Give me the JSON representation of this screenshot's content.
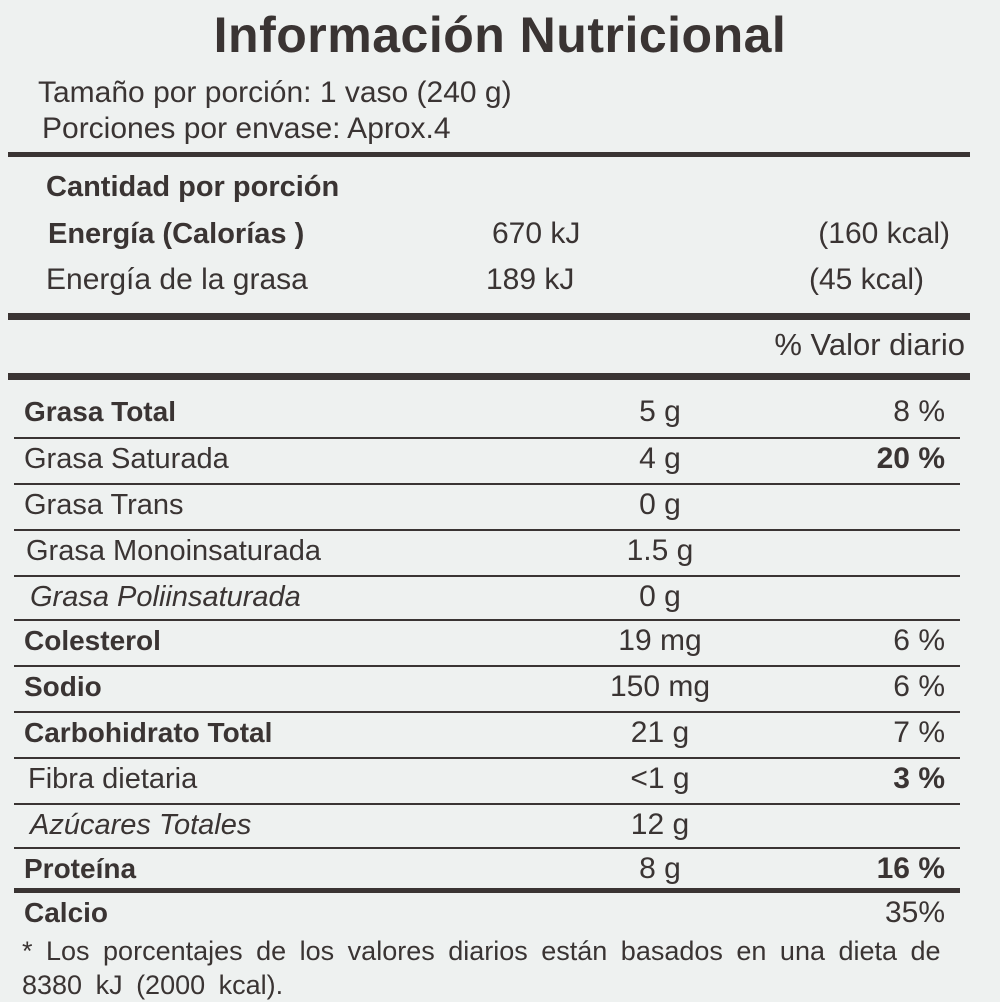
{
  "title": "Información Nutricional",
  "serving_size": "Tamaño por porción: 1 vaso (240 g)",
  "servings_per_container": "Porciones por envase: Aprox.4",
  "amount_per_serving": "Cantidad por porción",
  "energy": {
    "label": "Energía  (Calorías )",
    "kj": "670 kJ",
    "kcal": "(160 kcal)"
  },
  "energy_fat": {
    "label": "Energía de la grasa",
    "kj": "189 kJ",
    "kcal": "(45 kcal)"
  },
  "daily_value_header": "% Valor diario",
  "nutrients": [
    {
      "name": "Grasa Total",
      "amount": "5 g",
      "dv": "8 %",
      "bold": true
    },
    {
      "name": "Grasa Saturada",
      "amount": "4 g",
      "dv": "20 %",
      "bold": false
    },
    {
      "name": "Grasa Trans",
      "amount": "0 g",
      "dv": "",
      "bold": false
    },
    {
      "name": "Grasa Monoinsaturada",
      "amount": "1.5 g",
      "dv": "",
      "bold": false
    },
    {
      "name": "Grasa Poliinsaturada",
      "amount": "0 g",
      "dv": "",
      "bold": false
    },
    {
      "name": "Colesterol",
      "amount": "19 mg",
      "dv": "6 %",
      "bold": true
    },
    {
      "name": "Sodio",
      "amount": "150 mg",
      "dv": "6 %",
      "bold": true
    },
    {
      "name": "Carbohidrato Total",
      "amount": "21 g",
      "dv": "7 %",
      "bold": true
    },
    {
      "name": "Fibra dietaria",
      "amount": "<1 g",
      "dv": "3 %",
      "bold": false
    },
    {
      "name": "Azúcares Totales",
      "amount": "12 g",
      "dv": "",
      "bold": false
    },
    {
      "name": "Proteína",
      "amount": "8 g",
      "dv": "16 %",
      "bold": true
    },
    {
      "name": "Calcio",
      "amount": "",
      "dv": "35%",
      "bold": true
    }
  ],
  "footnote": "* Los porcentajes de los valores diarios están basados en una dieta de 8380 kJ (2000 kcal)."
}
